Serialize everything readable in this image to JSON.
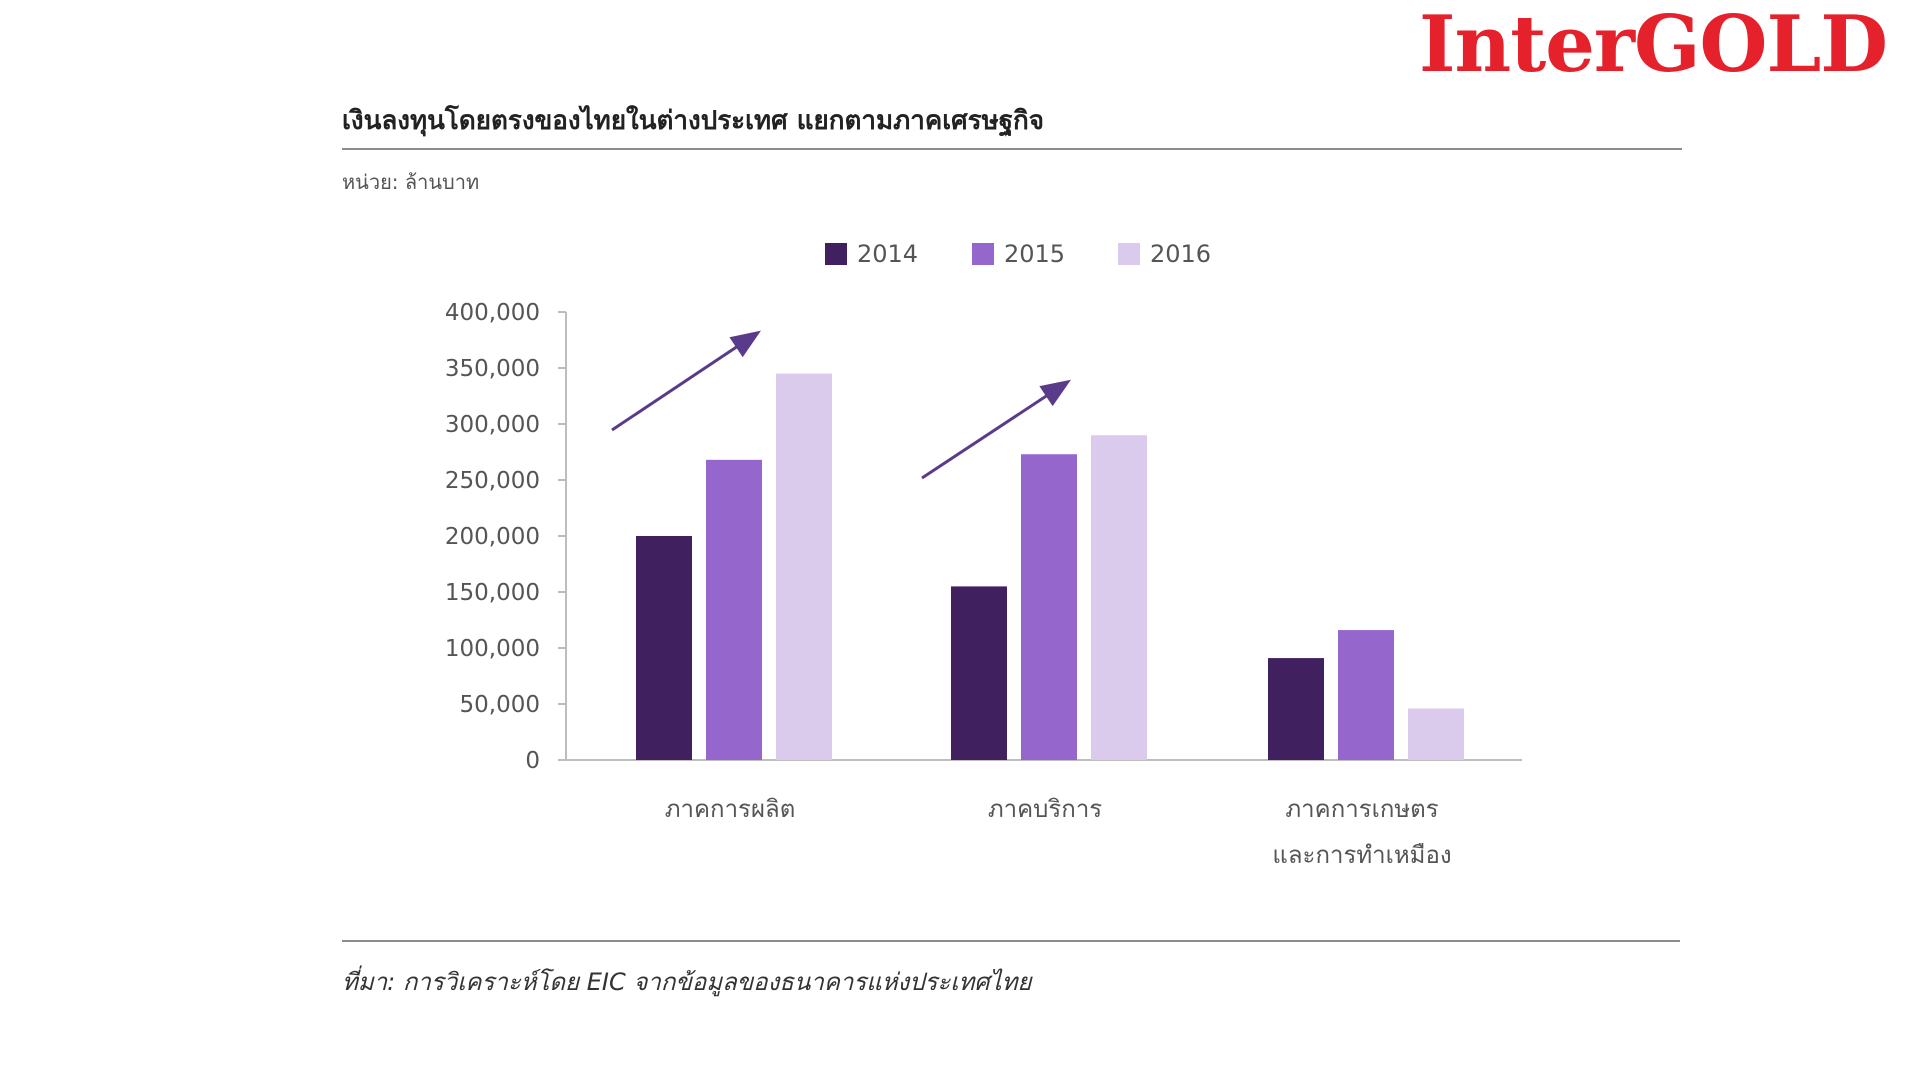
{
  "logo": {
    "text": "InterGOLD",
    "color": "#e5222c"
  },
  "header": {
    "title": "เงินลงทุนโดยตรงของไทยในต่างประเทศ แยกตามภาคเศรษฐกิจ",
    "unit": "หน่วย: ล้านบาท"
  },
  "footer": {
    "source": "ที่มา: การวิเคราะห์โดย EIC จากข้อมูลของธนาคารแห่งประเทศไทย"
  },
  "chart_data": {
    "type": "bar",
    "categories": [
      "ภาคการผลิต",
      "ภาคบริการ",
      "ภาคการเกษตร และการทำเหมือง"
    ],
    "category_lines": [
      [
        "ภาคการผลิต"
      ],
      [
        "ภาคบริการ"
      ],
      [
        "ภาคการเกษตร",
        "และการทำเหมือง"
      ]
    ],
    "series": [
      {
        "name": "2014",
        "color": "#41205f",
        "values": [
          200000,
          155000,
          91000
        ]
      },
      {
        "name": "2015",
        "color": "#9566cc",
        "values": [
          268000,
          273000,
          116000
        ]
      },
      {
        "name": "2016",
        "color": "#dacbec",
        "values": [
          345000,
          290000,
          46000
        ]
      }
    ],
    "ylim": [
      0,
      400000
    ],
    "yticks": [
      0,
      50000,
      100000,
      150000,
      200000,
      250000,
      300000,
      350000,
      400000
    ],
    "ytick_labels": [
      "0",
      "50,000",
      "100,000",
      "150,000",
      "200,000",
      "250,000",
      "300,000",
      "350,000",
      "400,000"
    ],
    "legend_position": "top-center",
    "grid": false,
    "annotations": [
      {
        "type": "arrow",
        "category": 0,
        "meaning": "increasing-trend",
        "color": "#5a3a8a"
      },
      {
        "type": "arrow",
        "category": 1,
        "meaning": "increasing-trend",
        "color": "#5a3a8a"
      }
    ]
  }
}
